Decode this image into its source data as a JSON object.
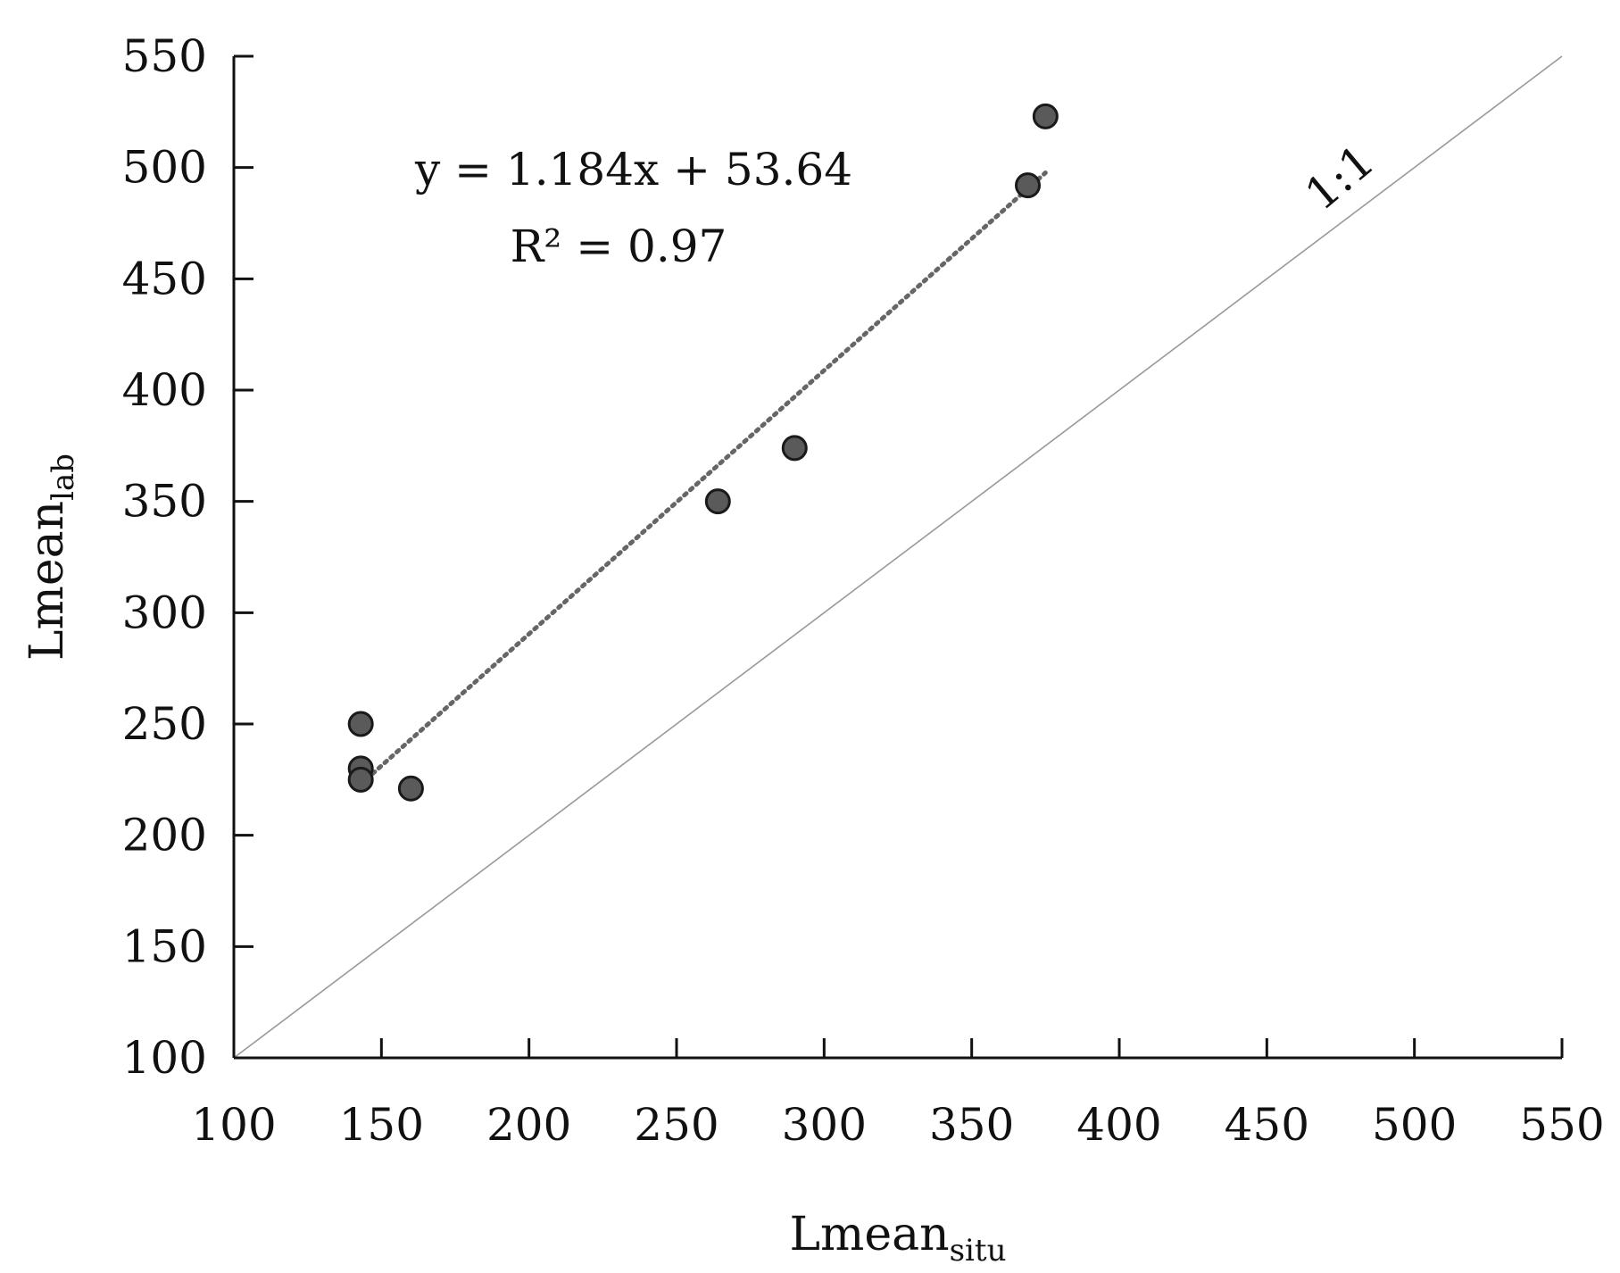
{
  "chart_data": {
    "type": "scatter",
    "title": "",
    "xlabel": "Lmean",
    "xlabel_sub": "situ",
    "ylabel": "Lmean",
    "ylabel_sub": "lab",
    "xlim": [
      100,
      550
    ],
    "ylim": [
      100,
      550
    ],
    "xticks": [
      "100",
      "150",
      "200",
      "250",
      "300",
      "350",
      "400",
      "450",
      "500",
      "550"
    ],
    "yticks": [
      "100",
      "150",
      "200",
      "250",
      "300",
      "350",
      "400",
      "450",
      "500",
      "550"
    ],
    "grid": false,
    "points": [
      {
        "x": 143,
        "y": 250
      },
      {
        "x": 143,
        "y": 230
      },
      {
        "x": 143,
        "y": 225
      },
      {
        "x": 160,
        "y": 221
      },
      {
        "x": 264,
        "y": 350
      },
      {
        "x": 290,
        "y": 374
      },
      {
        "x": 369,
        "y": 492
      },
      {
        "x": 375,
        "y": 523
      }
    ],
    "trendline": {
      "slope": 1.184,
      "intercept": 53.64,
      "x_range": [
        143,
        375
      ],
      "equation_label": "y = 1.184x + 53.64",
      "r2_label": "R² = 0.97"
    },
    "reference_line": {
      "label": "1:1",
      "x_range": [
        100,
        550
      ]
    },
    "colors": {
      "marker_fill": "#5a5a5a",
      "marker_stroke": "#1a1a1a",
      "trendline": "#666666",
      "reference_line": "#999999",
      "axis": "#111111"
    }
  }
}
